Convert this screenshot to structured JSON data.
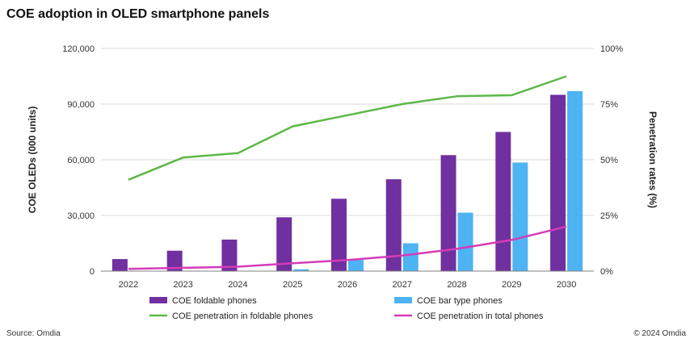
{
  "title": "COE adoption in OLED smartphone panels",
  "source": "Source: Omdia",
  "copyright": "© 2024 Omdia",
  "colors": {
    "foldable_bar": "#7030A0",
    "bar_type_bar": "#4EB3F2",
    "foldable_line": "#5DB847",
    "total_line": "#D63BB8",
    "gridline": "#D9D9D9",
    "axis": "#808080"
  },
  "chart_data": {
    "type": "bar",
    "categories": [
      "2022",
      "2023",
      "2024",
      "2025",
      "2026",
      "2027",
      "2028",
      "2029",
      "2030"
    ],
    "ylabel": "COE OLEDs (000 units)",
    "ylabel_right": "Penetration rates (%)",
    "ylim": [
      0,
      120000
    ],
    "ylim_right": [
      0,
      100
    ],
    "yticks": [
      "0",
      "30,000",
      "60,000",
      "90,000",
      "120,000"
    ],
    "yticks_right": [
      "0%",
      "25%",
      "50%",
      "75%",
      "100%"
    ],
    "grid": true,
    "legend_position": "bottom",
    "series": [
      {
        "name": "COE foldable phones",
        "kind": "bar",
        "axis": "left",
        "values": [
          6500,
          11000,
          17000,
          29000,
          39000,
          49500,
          62500,
          75000,
          95000
        ]
      },
      {
        "name": "COE bar type phones",
        "kind": "bar",
        "axis": "left",
        "values": [
          0,
          0,
          0,
          1000,
          6000,
          15000,
          31500,
          58500,
          97000
        ]
      },
      {
        "name": "COE penetration in foldable phones",
        "kind": "line",
        "axis": "right",
        "values": [
          41,
          51,
          53,
          65,
          70,
          75,
          78.5,
          79,
          87.5
        ]
      },
      {
        "name": "COE penetration in total phones",
        "kind": "line",
        "axis": "right",
        "values": [
          1,
          1.5,
          2,
          3.5,
          5,
          7,
          10,
          14,
          20
        ]
      }
    ]
  }
}
